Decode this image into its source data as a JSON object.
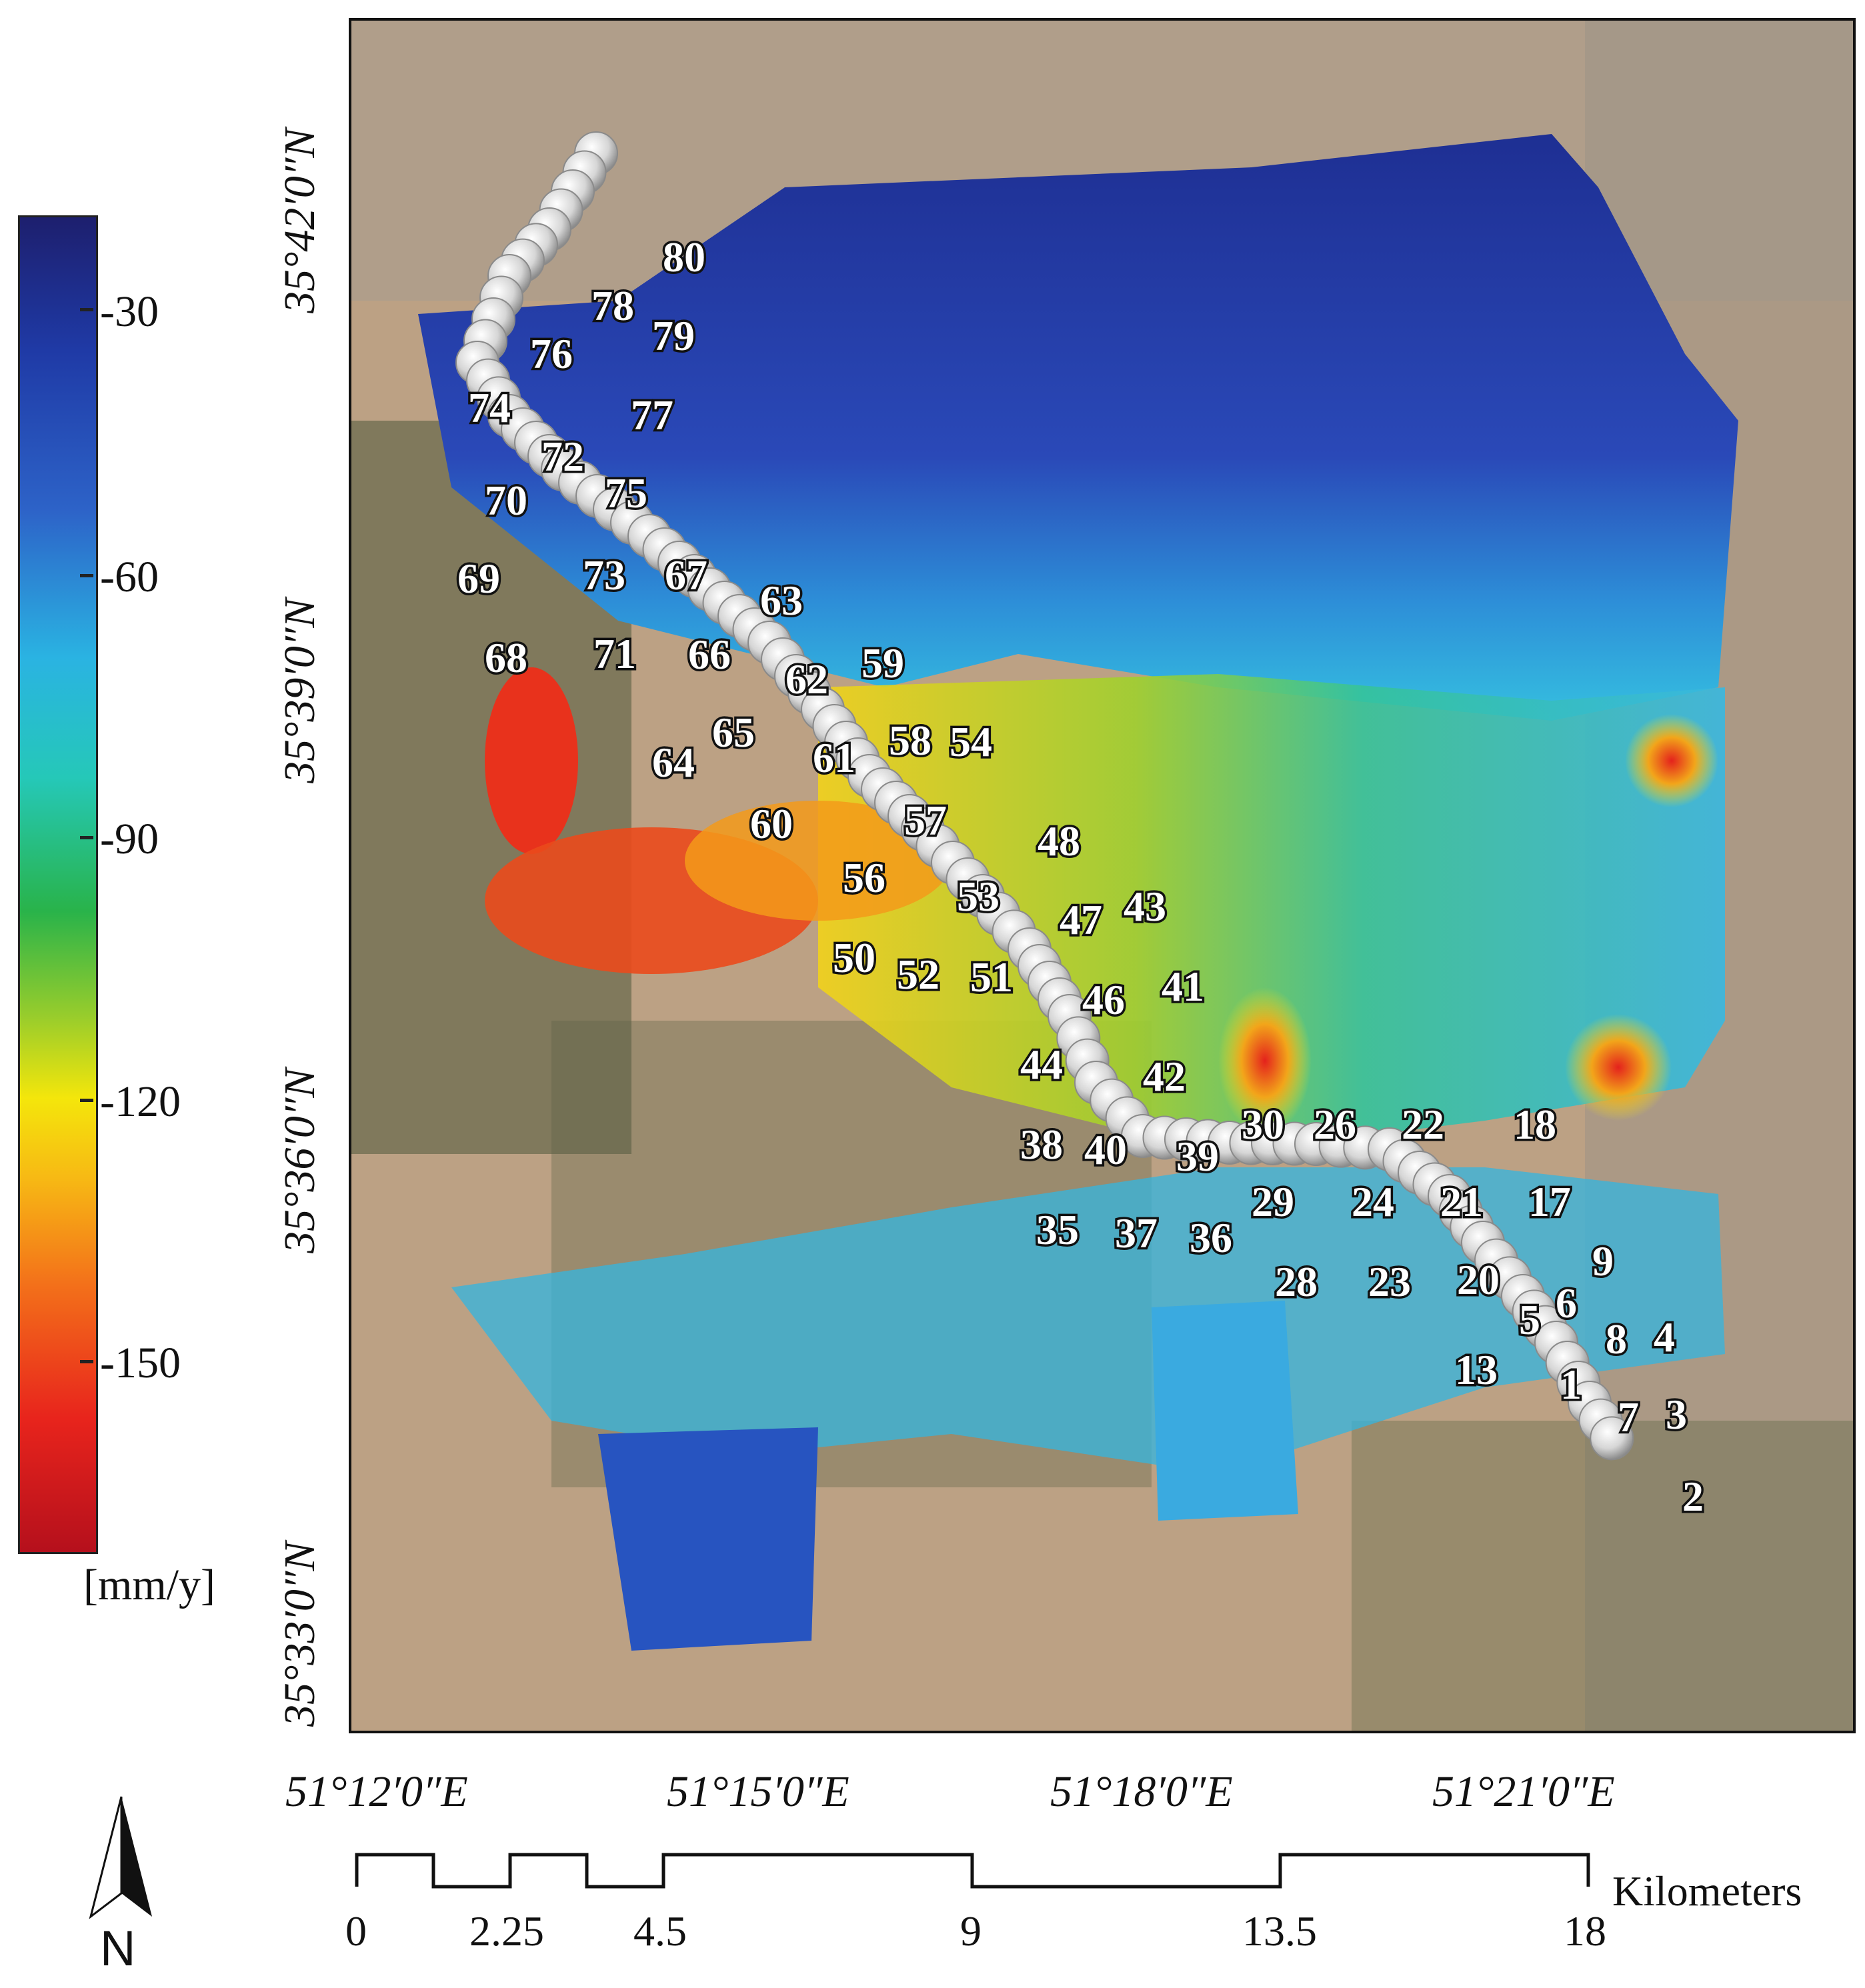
{
  "colorbar": {
    "unit": "[mm/y]",
    "ticks": [
      "-30",
      "-60",
      "-90",
      "-120",
      "-150"
    ],
    "colors": [
      "#1d1f6e",
      "#1f3aa6",
      "#2ab3e2",
      "#29b34a",
      "#f4e60b",
      "#f3701a",
      "#e8241c",
      "#b5101c"
    ]
  },
  "latitude_labels": [
    "35°42′0″N",
    "35°39′0″N",
    "35°36′0″N",
    "35°33′0″N"
  ],
  "longitude_labels": [
    "51°12′0″E",
    "51°15′0″E",
    "51°18′0″E",
    "51°21′0″E"
  ],
  "scale_bar": {
    "values": [
      "0",
      "2.25",
      "4.5",
      "9",
      "13.5",
      "18"
    ],
    "unit": "Kilometers"
  },
  "north_arrow": {
    "label": "N"
  },
  "points": [
    "1",
    "2",
    "3",
    "4",
    "5",
    "6",
    "7",
    "8",
    "9",
    "13",
    "17",
    "18",
    "20",
    "21",
    "22",
    "23",
    "24",
    "26",
    "28",
    "29",
    "30",
    "35",
    "36",
    "37",
    "38",
    "39",
    "40",
    "41",
    "42",
    "43",
    "44",
    "46",
    "47",
    "48",
    "50",
    "51",
    "52",
    "53",
    "54",
    "56",
    "57",
    "58",
    "59",
    "60",
    "61",
    "62",
    "63",
    "64",
    "65",
    "66",
    "67",
    "68",
    "69",
    "70",
    "71",
    "72",
    "73",
    "74",
    "75",
    "76",
    "77",
    "78",
    "79",
    "80"
  ]
}
